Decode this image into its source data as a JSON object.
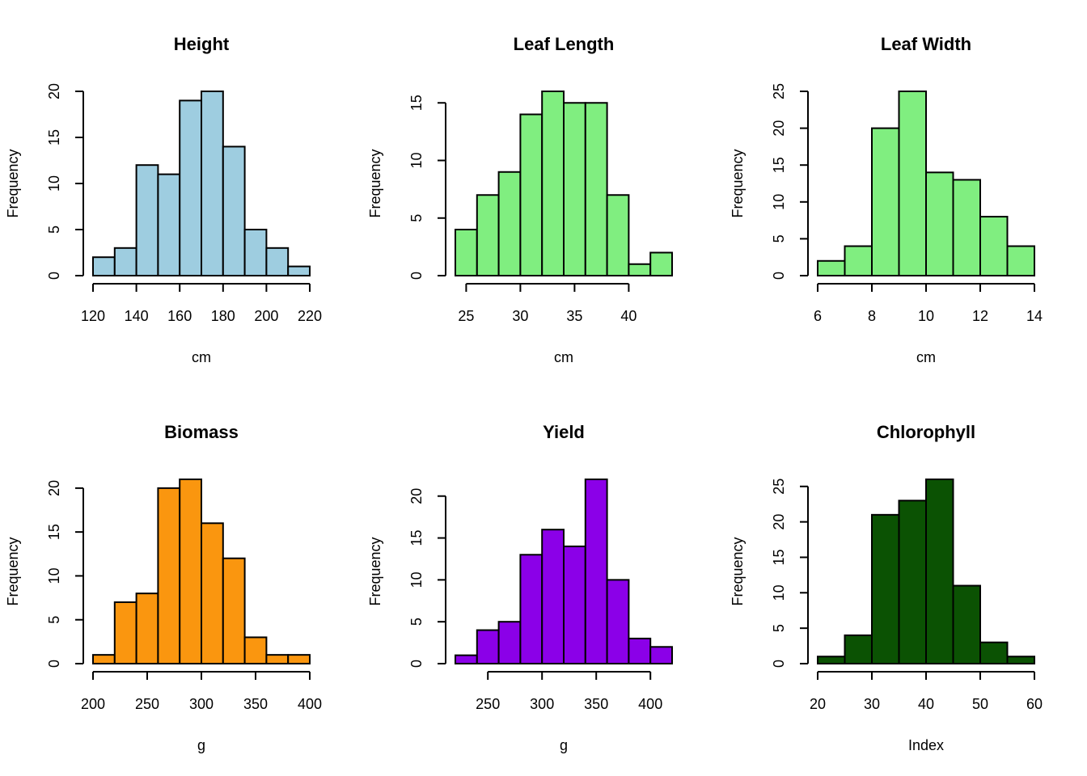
{
  "chart_data": [
    {
      "type": "bar",
      "title": "Height",
      "xlabel": "cm",
      "ylabel": "Frequency",
      "color": "#9ECDE0",
      "breaks": [
        120,
        130,
        140,
        150,
        160,
        170,
        180,
        190,
        200,
        210,
        220
      ],
      "values": [
        2,
        3,
        12,
        11,
        19,
        20,
        14,
        5,
        3,
        1
      ],
      "xticks": [
        120,
        140,
        160,
        180,
        200,
        220
      ],
      "yticks": [
        0,
        5,
        10,
        15,
        20
      ]
    },
    {
      "type": "bar",
      "title": "Leaf Length",
      "xlabel": "cm",
      "ylabel": "Frequency",
      "color": "#80EE80",
      "breaks": [
        24,
        26,
        28,
        30,
        32,
        34,
        36,
        38,
        40,
        42,
        44
      ],
      "values": [
        4,
        7,
        9,
        14,
        16,
        15,
        15,
        7,
        1,
        2
      ],
      "xticks": [
        25,
        30,
        35,
        40
      ],
      "yticks": [
        0,
        5,
        10,
        15
      ]
    },
    {
      "type": "bar",
      "title": "Leaf Width",
      "xlabel": "cm",
      "ylabel": "Frequency",
      "color": "#80EE80",
      "breaks": [
        6,
        7,
        8,
        9,
        10,
        11,
        12,
        13,
        14
      ],
      "values": [
        2,
        4,
        20,
        25,
        14,
        13,
        8,
        4
      ],
      "xticks": [
        6,
        8,
        10,
        12,
        14
      ],
      "yticks": [
        0,
        5,
        10,
        15,
        20,
        25
      ]
    },
    {
      "type": "bar",
      "title": "Biomass",
      "xlabel": "g",
      "ylabel": "Frequency",
      "color": "#FA960F",
      "breaks": [
        200,
        220,
        240,
        260,
        280,
        300,
        320,
        340,
        360,
        380,
        400
      ],
      "values": [
        1,
        7,
        8,
        20,
        21,
        16,
        12,
        3,
        1,
        1
      ],
      "xticks": [
        200,
        250,
        300,
        350,
        400
      ],
      "yticks": [
        0,
        5,
        10,
        15,
        20
      ]
    },
    {
      "type": "bar",
      "title": "Yield",
      "xlabel": "g",
      "ylabel": "Frequency",
      "color": "#8B00E8",
      "breaks": [
        220,
        240,
        260,
        280,
        300,
        320,
        340,
        360,
        380,
        400,
        420
      ],
      "values": [
        1,
        4,
        5,
        13,
        16,
        14,
        22,
        10,
        3,
        2
      ],
      "xticks": [
        250,
        300,
        350,
        400
      ],
      "yticks": [
        0,
        5,
        10,
        15,
        20
      ]
    },
    {
      "type": "bar",
      "title": "Chlorophyll",
      "xlabel": "Index",
      "ylabel": "Frequency",
      "color": "#0B5203",
      "breaks": [
        20,
        25,
        30,
        35,
        40,
        45,
        50,
        55,
        60
      ],
      "values": [
        1,
        4,
        21,
        23,
        26,
        11,
        3,
        1
      ],
      "xticks": [
        20,
        30,
        40,
        50,
        60
      ],
      "yticks": [
        0,
        5,
        10,
        15,
        20,
        25
      ]
    }
  ]
}
